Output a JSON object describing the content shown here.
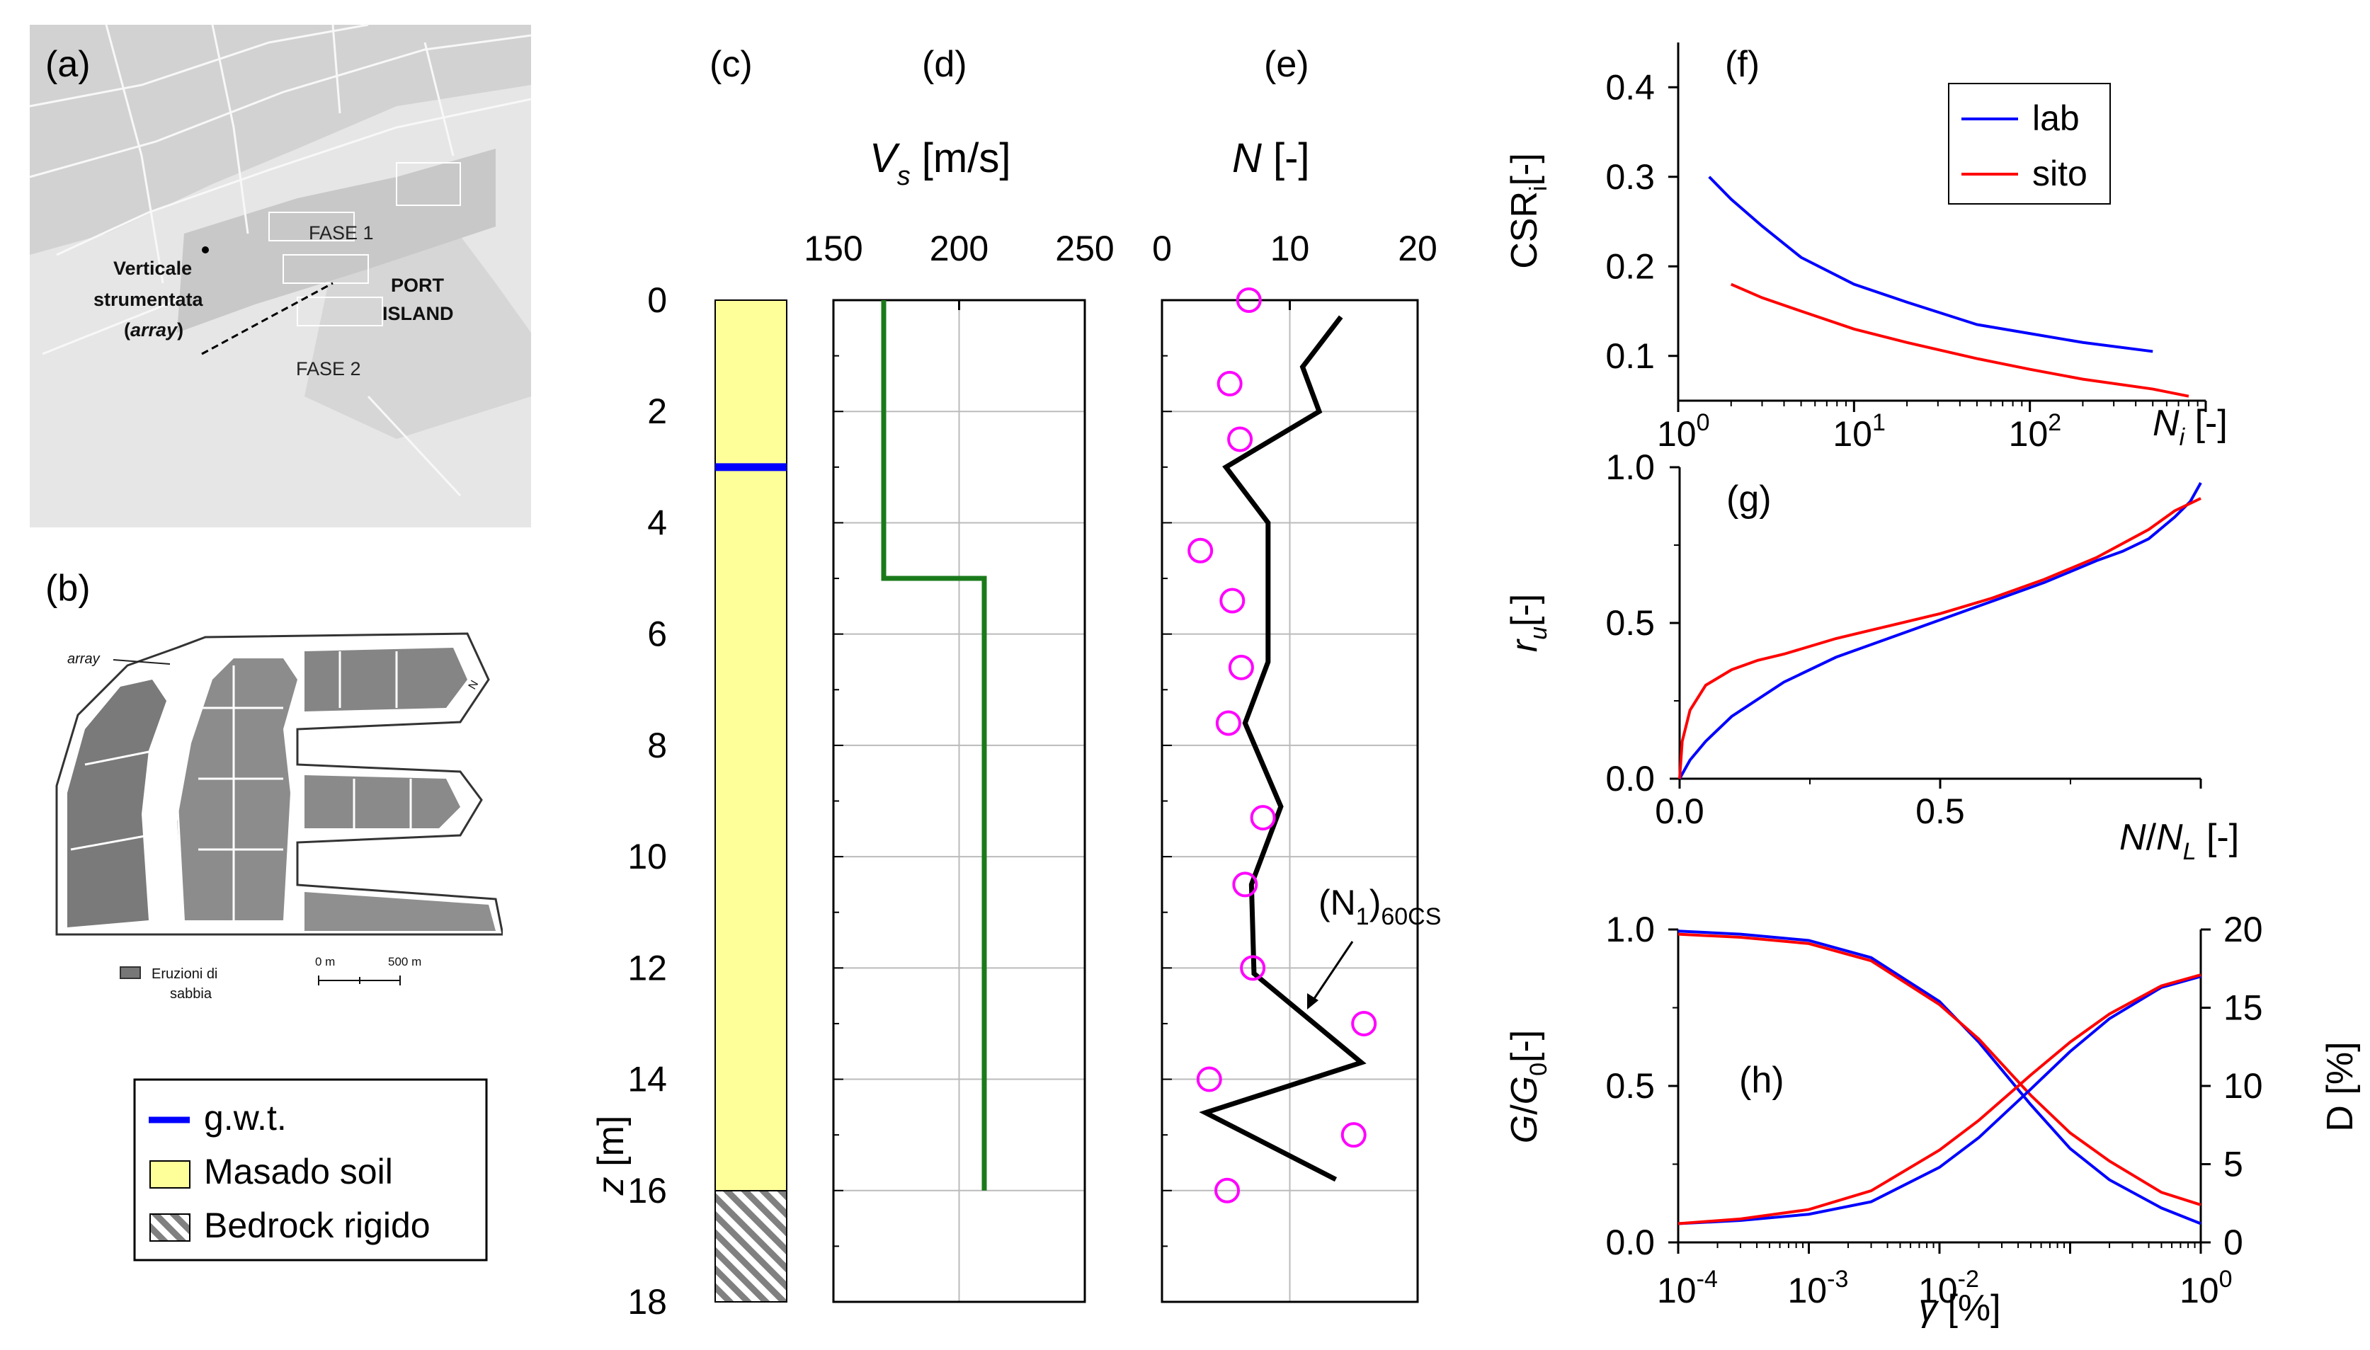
{
  "panel_labels": {
    "a": "(a)",
    "b": "(b)",
    "c": "(c)",
    "d": "(d)",
    "e": "(e)",
    "f": "(f)",
    "g": "(g)",
    "h": "(h)"
  },
  "map_a": {
    "fase1": "FASE 1",
    "fase2": "FASE 2",
    "port_island_1": "PORT",
    "port_island_2": "ISLAND",
    "array_line1": "Verticale",
    "array_line2": "strumentata",
    "array_line3_open": "(",
    "array_line3_italic": "array",
    "array_line3_close": ")"
  },
  "map_b": {
    "array_label": "array",
    "legend_eruzioni_1": "Eruzioni di",
    "legend_eruzioni_2": "sabbia",
    "scale_0": "0 m",
    "scale_500": "500 m",
    "north": "N"
  },
  "legend_soil": {
    "gwt": "g.w.t.",
    "masado": "Masado soil",
    "bedrock": "Bedrock rigido"
  },
  "colors": {
    "masado_fill": "#ffff99",
    "gwt": "#0000ff",
    "vs_line": "#1a7a1a",
    "n_points": "#ff00ff",
    "n60_line": "#000000",
    "lab": "#0000ff",
    "sito": "#ff0000",
    "map_background": "#e0e0e0",
    "map_sea": "#eeeeee"
  },
  "chart_data": [
    {
      "id": "c",
      "type": "column_profile",
      "ylabel_main": "z",
      "ylabel_unit": " [m]",
      "ylim": [
        0,
        18
      ],
      "y_ticks": [
        "0",
        "2",
        "4",
        "6",
        "8",
        "10",
        "12",
        "14",
        "16",
        "18"
      ],
      "layers": [
        {
          "name": "Masado soil",
          "from": 0,
          "to": 16
        },
        {
          "name": "Bedrock rigido",
          "from": 16,
          "to": 18
        }
      ],
      "gwt_depth": 3
    },
    {
      "id": "d",
      "type": "line",
      "xlabel_main": "V",
      "xlabel_sub": "s",
      "xlabel_unit": " [m/s]",
      "xlim": [
        150,
        250
      ],
      "x_ticks": [
        "150",
        "200",
        "250"
      ],
      "ylim": [
        0,
        18
      ],
      "profile": [
        {
          "vs": 170,
          "z": 0
        },
        {
          "vs": 170,
          "z": 5
        },
        {
          "vs": 210,
          "z": 5
        },
        {
          "vs": 210,
          "z": 16
        }
      ]
    },
    {
      "id": "e",
      "type": "line_scatter",
      "xlabel_main": "N",
      "xlabel_unit": " [-]",
      "xlim": [
        0,
        20
      ],
      "x_ticks": [
        "0",
        "10",
        "20"
      ],
      "ylim": [
        0,
        18
      ],
      "annotation_main": "(N",
      "annotation_sub1": "1",
      "annotation_close": ")",
      "annotation_sub2": "60CS",
      "n60cs_line": [
        {
          "n": 14,
          "z": 0.3
        },
        {
          "n": 11,
          "z": 1.2
        },
        {
          "n": 12.3,
          "z": 2.0
        },
        {
          "n": 5,
          "z": 3.0
        },
        {
          "n": 8.3,
          "z": 4.0
        },
        {
          "n": 8.3,
          "z": 6.5
        },
        {
          "n": 6.5,
          "z": 7.6
        },
        {
          "n": 9.3,
          "z": 9.1
        },
        {
          "n": 7,
          "z": 10.5
        },
        {
          "n": 7.2,
          "z": 12.1
        },
        {
          "n": 15.6,
          "z": 13.7
        },
        {
          "n": 3.4,
          "z": 14.6
        },
        {
          "n": 13.6,
          "z": 15.8
        }
      ],
      "n_points": [
        {
          "n": 6.8,
          "z": 0.0
        },
        {
          "n": 5.3,
          "z": 1.5
        },
        {
          "n": 6.1,
          "z": 2.5
        },
        {
          "n": 3.0,
          "z": 4.5
        },
        {
          "n": 5.5,
          "z": 5.4
        },
        {
          "n": 6.2,
          "z": 6.6
        },
        {
          "n": 5.2,
          "z": 7.6
        },
        {
          "n": 7.9,
          "z": 9.3
        },
        {
          "n": 6.5,
          "z": 10.5
        },
        {
          "n": 7.1,
          "z": 12.0
        },
        {
          "n": 15.8,
          "z": 13.0
        },
        {
          "n": 3.7,
          "z": 14.0
        },
        {
          "n": 15.0,
          "z": 15.0
        },
        {
          "n": 5.1,
          "z": 16.0
        }
      ]
    },
    {
      "id": "f",
      "type": "line",
      "xscale": "log",
      "xlim_exp": [
        0,
        3
      ],
      "x_tick_base": "10",
      "x_tick_exps": [
        "0",
        "1",
        "2"
      ],
      "xlabel_main": "N",
      "xlabel_sub": "i",
      "xlabel_unit": " [-]",
      "ylabel_main": "CSR",
      "ylabel_sub": "i",
      "ylabel_unit": "[-]",
      "ylim": [
        0.05,
        0.45
      ],
      "y_ticks": [
        "0.1",
        "0.2",
        "0.3",
        "0.4"
      ],
      "legend": [
        "lab",
        "sito"
      ],
      "series": [
        {
          "name": "lab",
          "x": [
            1.5,
            2,
            3,
            5,
            10,
            20,
            50,
            100,
            200,
            500
          ],
          "y": [
            0.3,
            0.275,
            0.245,
            0.21,
            0.18,
            0.16,
            0.135,
            0.125,
            0.115,
            0.105
          ]
        },
        {
          "name": "sito",
          "x": [
            2,
            3,
            5,
            10,
            20,
            50,
            100,
            200,
            500,
            800
          ],
          "y": [
            0.18,
            0.165,
            0.15,
            0.13,
            0.115,
            0.097,
            0.085,
            0.074,
            0.063,
            0.055
          ]
        }
      ]
    },
    {
      "id": "g",
      "type": "line",
      "xlim": [
        0,
        1
      ],
      "x_ticks": [
        "0.0",
        "0.5"
      ],
      "ylim": [
        0,
        1
      ],
      "y_ticks": [
        "0.0",
        "0.5",
        "1.0"
      ],
      "xlabel_main1": "N",
      "xlabel_slash": "/",
      "xlabel_main2": "N",
      "xlabel_sub": "L",
      "xlabel_unit": " [-]",
      "ylabel_main": "r",
      "ylabel_sub": "u",
      "ylabel_unit": "[-]",
      "series": [
        {
          "name": "lab",
          "x": [
            0,
            0.02,
            0.05,
            0.1,
            0.2,
            0.3,
            0.4,
            0.5,
            0.6,
            0.7,
            0.8,
            0.85,
            0.9,
            0.95,
            0.98,
            1.0
          ],
          "y": [
            0,
            0.06,
            0.12,
            0.2,
            0.31,
            0.39,
            0.45,
            0.51,
            0.57,
            0.63,
            0.7,
            0.73,
            0.77,
            0.84,
            0.89,
            0.95
          ]
        },
        {
          "name": "sito",
          "x": [
            0,
            0.005,
            0.02,
            0.05,
            0.1,
            0.15,
            0.2,
            0.3,
            0.4,
            0.5,
            0.6,
            0.7,
            0.8,
            0.9,
            0.95,
            1.0
          ],
          "y": [
            0,
            0.12,
            0.22,
            0.3,
            0.35,
            0.38,
            0.4,
            0.45,
            0.49,
            0.53,
            0.58,
            0.64,
            0.71,
            0.8,
            0.86,
            0.9
          ]
        }
      ]
    },
    {
      "id": "h",
      "type": "line",
      "xscale": "log",
      "xlim_exp": [
        -4,
        0
      ],
      "x_tick_base": "10",
      "x_tick_exps": [
        "-4",
        "-3",
        "-2",
        "0"
      ],
      "xlabel_main": "γ",
      "xlabel_unit": " [%]",
      "ylabel_left_main": "G",
      "ylabel_left_slash": "/",
      "ylabel_left_main2": "G",
      "ylabel_left_sub": "0",
      "ylabel_left_unit": "[-]",
      "ylim": [
        0,
        1
      ],
      "y_ticks": [
        "0.0",
        "0.5",
        "1.0"
      ],
      "ylabel_right": "D [%]",
      "y2lim": [
        0,
        20
      ],
      "y2_ticks": [
        "0",
        "5",
        "10",
        "15",
        "20"
      ],
      "series": [
        {
          "name": "G/G0 lab",
          "axis": "left",
          "x": [
            0.0001,
            0.0003,
            0.001,
            0.003,
            0.01,
            0.02,
            0.05,
            0.1,
            0.2,
            0.5,
            1.0
          ],
          "y": [
            0.995,
            0.985,
            0.965,
            0.91,
            0.77,
            0.64,
            0.44,
            0.3,
            0.2,
            0.11,
            0.06
          ]
        },
        {
          "name": "G/G0 sito",
          "axis": "left",
          "x": [
            0.0001,
            0.0003,
            0.001,
            0.003,
            0.01,
            0.02,
            0.05,
            0.1,
            0.2,
            0.5,
            1.0
          ],
          "y": [
            0.985,
            0.975,
            0.955,
            0.9,
            0.76,
            0.65,
            0.47,
            0.35,
            0.26,
            0.16,
            0.12
          ]
        },
        {
          "name": "D lab",
          "axis": "right",
          "x": [
            0.0001,
            0.0003,
            0.001,
            0.003,
            0.01,
            0.02,
            0.05,
            0.1,
            0.2,
            0.5,
            1.0
          ],
          "y": [
            1.2,
            1.4,
            1.8,
            2.6,
            4.8,
            6.7,
            9.8,
            12.2,
            14.3,
            16.3,
            17.0
          ]
        },
        {
          "name": "D sito",
          "axis": "right",
          "x": [
            0.0001,
            0.0003,
            0.001,
            0.003,
            0.01,
            0.02,
            0.05,
            0.1,
            0.2,
            0.5,
            1.0
          ],
          "y": [
            1.2,
            1.5,
            2.1,
            3.3,
            5.9,
            7.8,
            10.7,
            12.8,
            14.6,
            16.4,
            17.1
          ]
        }
      ]
    }
  ]
}
